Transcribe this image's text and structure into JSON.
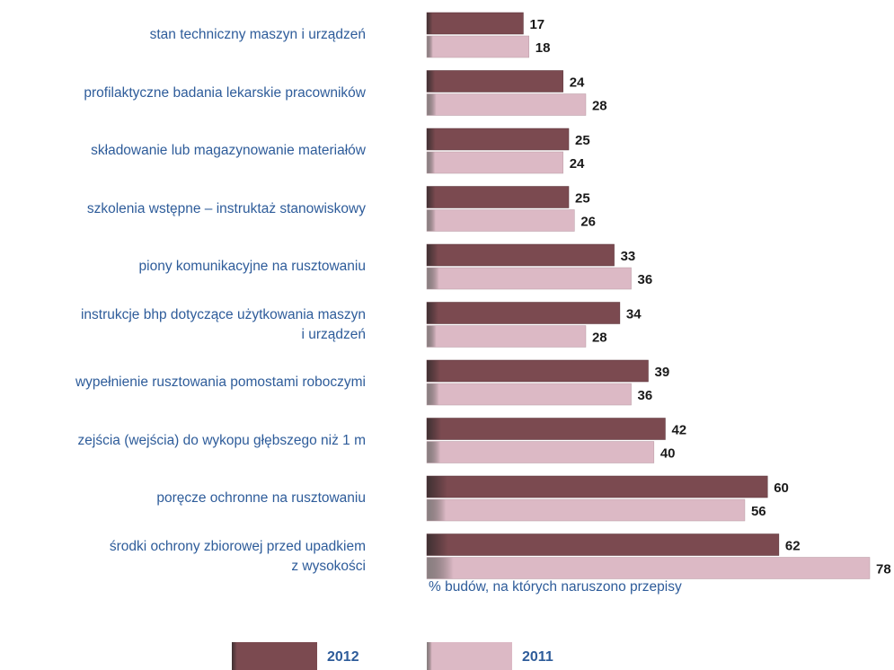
{
  "chart_data": {
    "type": "bar",
    "orientation": "horizontal",
    "x_label": "% budów, na których naruszono przepisy",
    "categories": [
      "stan techniczny maszyn i urządzeń",
      "profilaktyczne badania lekarskie pracowników",
      "składowanie lub magazynowanie materiałów",
      "szkolenia wstępne – instruktaż stanowiskowy",
      "piony komunikacyjne na rusztowaniu",
      "instrukcje bhp dotyczące użytkowania maszyn\ni urządzeń",
      "wypełnienie rusztowania pomostami roboczymi",
      "zejścia (wejścia) do wykopu głębszego niż 1 m",
      "poręcze ochronne na rusztowaniu",
      "środki ochrony zbiorowej przed upadkiem\nz wysokości"
    ],
    "series": [
      {
        "name": "2012",
        "color": "#7b4a50",
        "values": [
          17,
          24,
          25,
          25,
          33,
          34,
          39,
          42,
          60,
          62
        ]
      },
      {
        "name": "2011",
        "color": "#dcb9c5",
        "values": [
          18,
          28,
          24,
          26,
          36,
          28,
          36,
          40,
          56,
          78
        ]
      }
    ]
  }
}
